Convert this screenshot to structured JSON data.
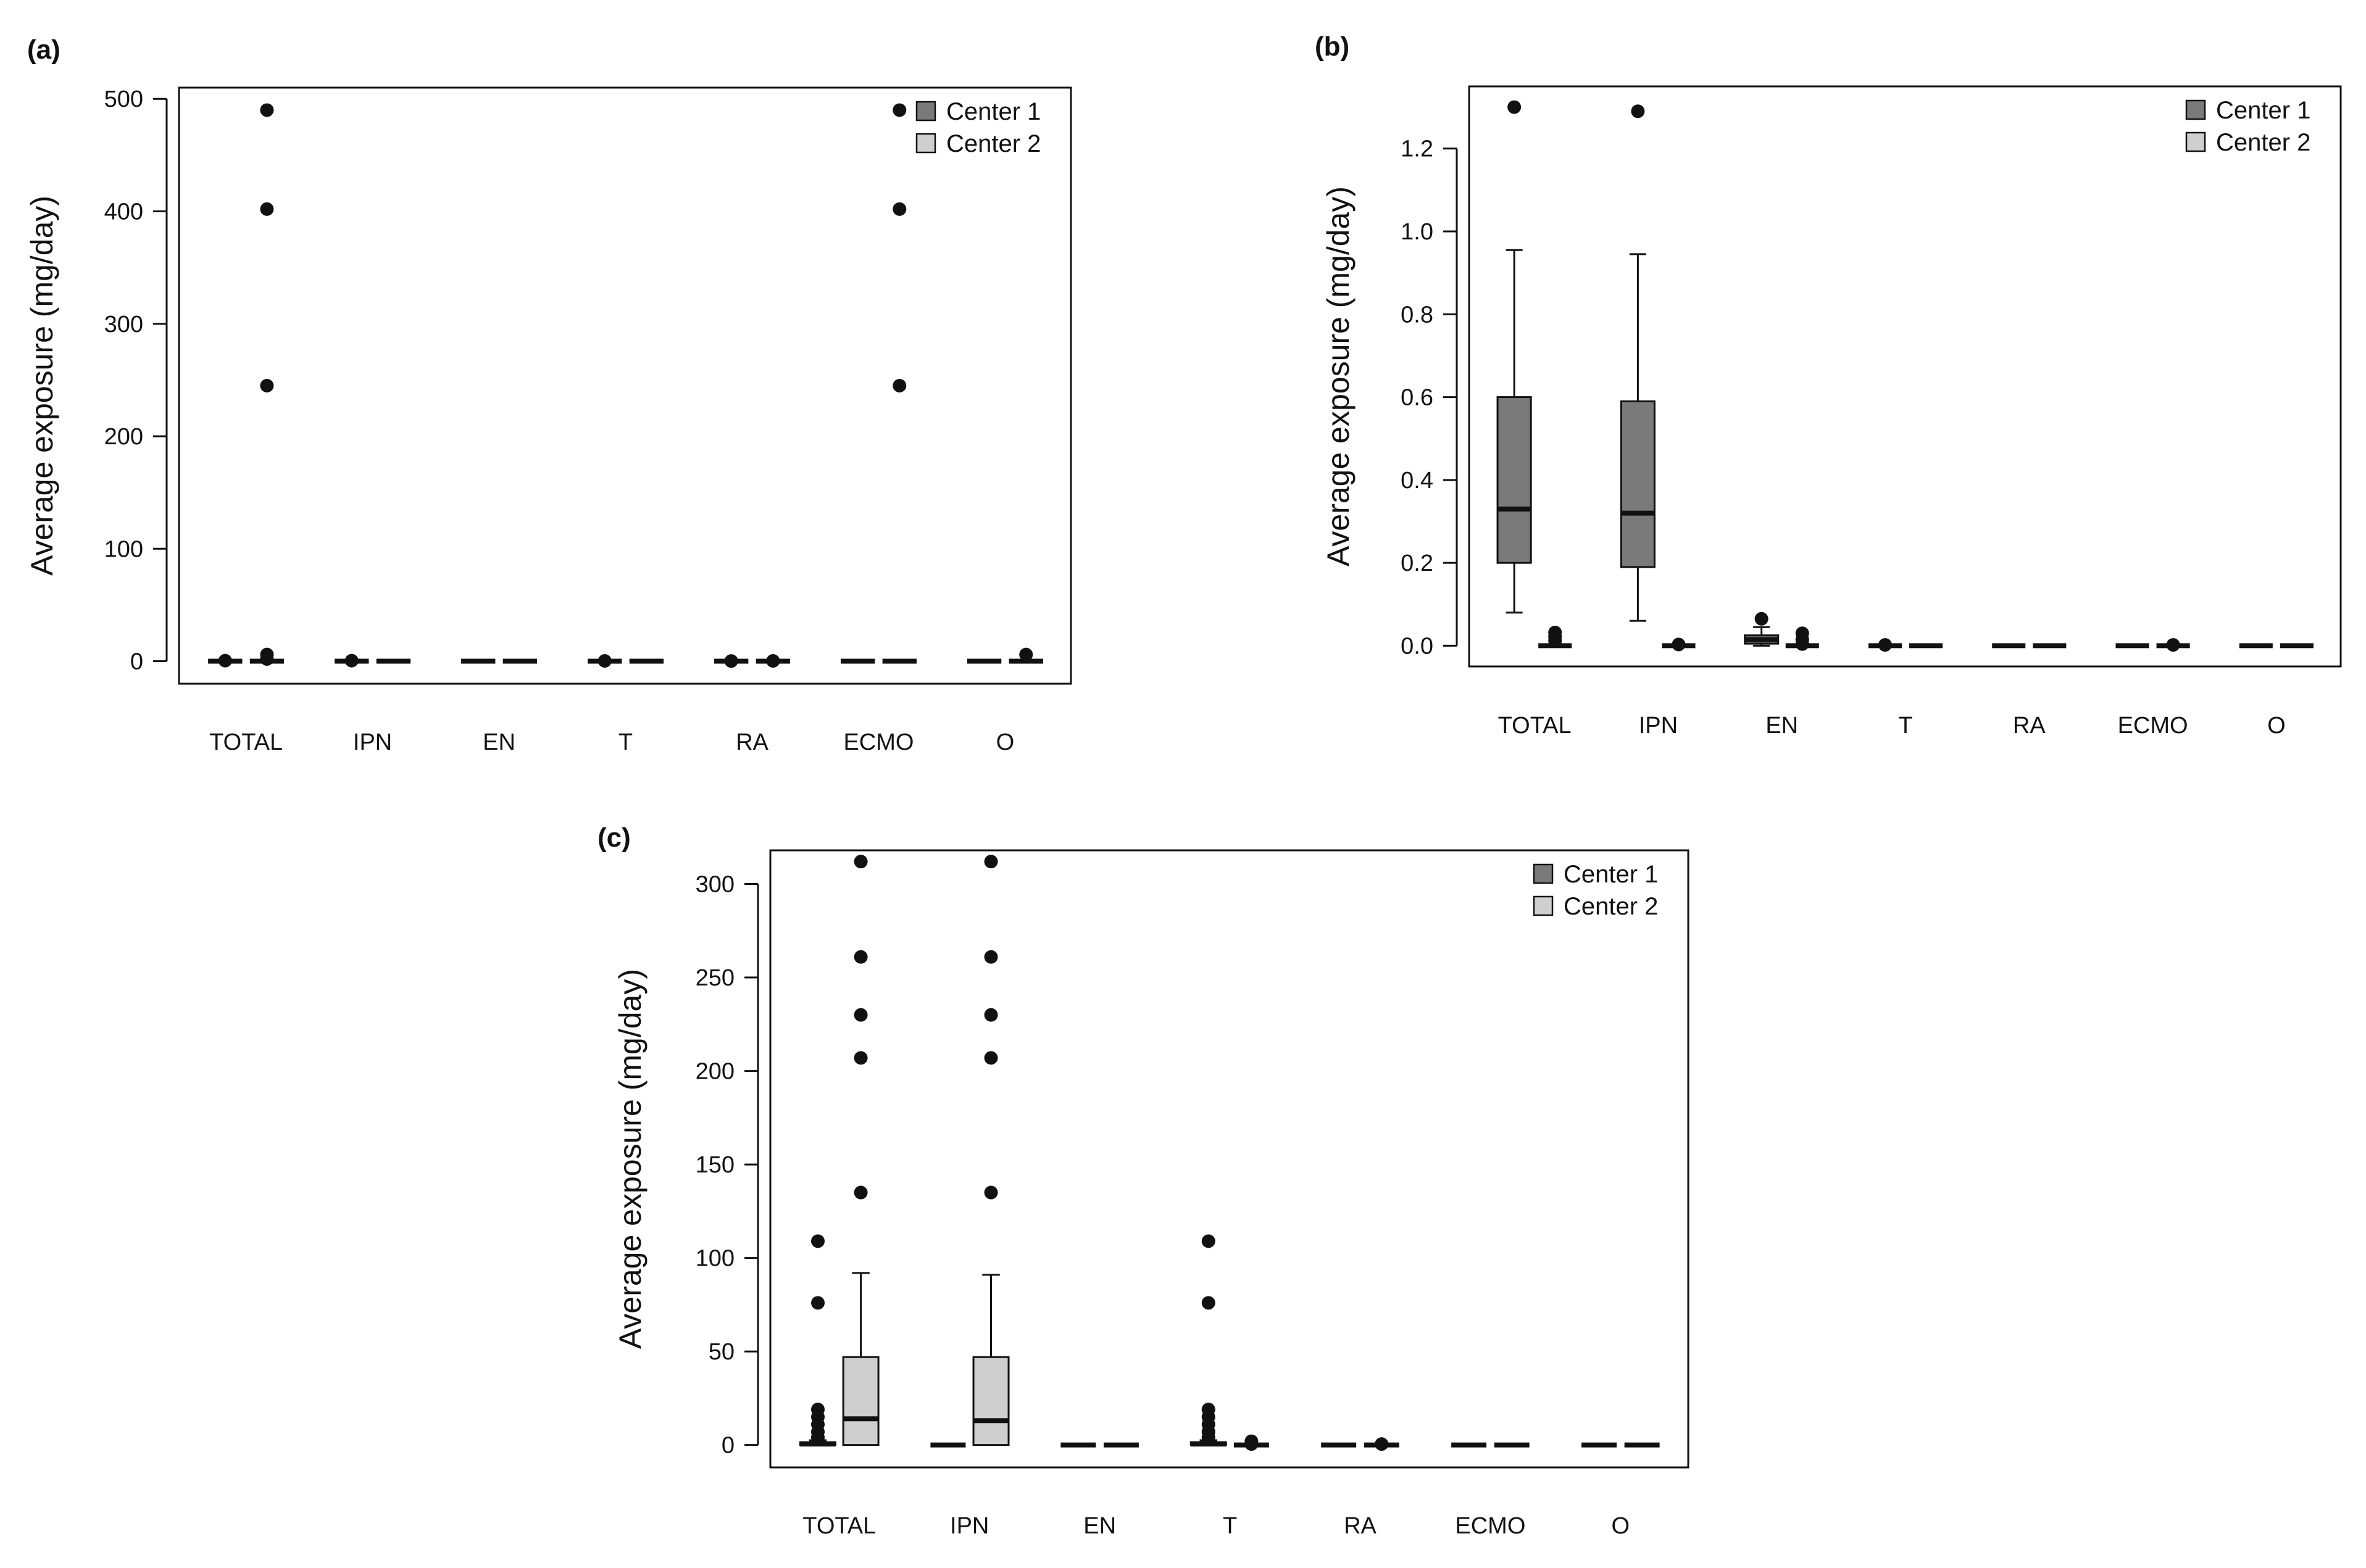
{
  "colors": {
    "center1": "#7a7a7a",
    "center2": "#cfcfcf",
    "ink": "#111111"
  },
  "chart_data": [
    {
      "panel": "(a)",
      "type": "box",
      "ylabel": "Average exposure (mg/day)",
      "ylim": [
        -20,
        510
      ],
      "yticks": [
        0,
        100,
        200,
        300,
        400,
        500
      ],
      "ytick_labels": [
        "0",
        "100",
        "200",
        "300",
        "400",
        "500"
      ],
      "categories": [
        "TOTAL",
        "IPN",
        "EN",
        "T",
        "RA",
        "ECMO",
        "O"
      ],
      "legend": {
        "position": "top-right",
        "entries": [
          "Center 1",
          "Center 2"
        ]
      },
      "series": [
        {
          "name": "Center 1",
          "boxes": [
            {
              "q1": 0,
              "median": 0,
              "q3": 0,
              "whisker_low": 0,
              "whisker_high": 0,
              "outliers": [
                0.5
              ]
            },
            {
              "q1": 0,
              "median": 0,
              "q3": 0,
              "whisker_low": 0,
              "whisker_high": 0,
              "outliers": [
                0.5
              ]
            },
            {
              "q1": 0,
              "median": 0,
              "q3": 0,
              "whisker_low": 0,
              "whisker_high": 0,
              "outliers": []
            },
            {
              "q1": 0,
              "median": 0,
              "q3": 0,
              "whisker_low": 0,
              "whisker_high": 0,
              "outliers": [
                0.3
              ]
            },
            {
              "q1": 0,
              "median": 0,
              "q3": 0,
              "whisker_low": 0,
              "whisker_high": 0,
              "outliers": [
                0.2
              ]
            },
            {
              "q1": 0,
              "median": 0,
              "q3": 0,
              "whisker_low": 0,
              "whisker_high": 0,
              "outliers": []
            },
            {
              "q1": 0,
              "median": 0,
              "q3": 0,
              "whisker_low": 0,
              "whisker_high": 0,
              "outliers": []
            }
          ]
        },
        {
          "name": "Center 2",
          "boxes": [
            {
              "q1": 0,
              "median": 0,
              "q3": 0,
              "whisker_low": 0,
              "whisker_high": 0,
              "outliers": [
                490,
                402,
                245,
                6,
                2
              ]
            },
            {
              "q1": 0,
              "median": 0,
              "q3": 0,
              "whisker_low": 0,
              "whisker_high": 0,
              "outliers": []
            },
            {
              "q1": 0,
              "median": 0,
              "q3": 0,
              "whisker_low": 0,
              "whisker_high": 0,
              "outliers": []
            },
            {
              "q1": 0,
              "median": 0,
              "q3": 0,
              "whisker_low": 0,
              "whisker_high": 0,
              "outliers": []
            },
            {
              "q1": 0,
              "median": 0,
              "q3": 0,
              "whisker_low": 0,
              "whisker_high": 0,
              "outliers": [
                0.3
              ]
            },
            {
              "q1": 0,
              "median": 0,
              "q3": 0,
              "whisker_low": 0,
              "whisker_high": 0,
              "outliers": [
                490,
                402,
                245
              ]
            },
            {
              "q1": 0,
              "median": 0,
              "q3": 0,
              "whisker_low": 0,
              "whisker_high": 0,
              "outliers": [
                6
              ]
            }
          ]
        }
      ]
    },
    {
      "panel": "(b)",
      "type": "box",
      "ylabel": "Average exposure (mg/day)",
      "ylim": [
        -0.05,
        1.35
      ],
      "yticks": [
        0,
        0.2,
        0.4,
        0.6,
        0.8,
        1.0,
        1.2
      ],
      "ytick_labels": [
        "0.0",
        "0.2",
        "0.4",
        "0.6",
        "0.8",
        "1.0",
        "1.2"
      ],
      "categories": [
        "TOTAL",
        "IPN",
        "EN",
        "T",
        "RA",
        "ECMO",
        "O"
      ],
      "legend": {
        "position": "top-right",
        "entries": [
          "Center 1",
          "Center 2"
        ]
      },
      "series": [
        {
          "name": "Center 1",
          "boxes": [
            {
              "q1": 0.2,
              "median": 0.33,
              "q3": 0.6,
              "whisker_low": 0.08,
              "whisker_high": 0.955,
              "outliers": [
                1.3
              ]
            },
            {
              "q1": 0.19,
              "median": 0.32,
              "q3": 0.59,
              "whisker_low": 0.06,
              "whisker_high": 0.945,
              "outliers": [
                1.29
              ]
            },
            {
              "q1": 0.005,
              "median": 0.015,
              "q3": 0.025,
              "whisker_low": 0,
              "whisker_high": 0.045,
              "outliers": [
                0.065
              ]
            },
            {
              "q1": 0,
              "median": 0,
              "q3": 0,
              "whisker_low": 0,
              "whisker_high": 0,
              "outliers": [
                0.002
              ]
            },
            {
              "q1": 0,
              "median": 0,
              "q3": 0,
              "whisker_low": 0,
              "whisker_high": 0,
              "outliers": []
            },
            {
              "q1": 0,
              "median": 0,
              "q3": 0,
              "whisker_low": 0,
              "whisker_high": 0,
              "outliers": []
            },
            {
              "q1": 0,
              "median": 0,
              "q3": 0,
              "whisker_low": 0,
              "whisker_high": 0,
              "outliers": []
            }
          ]
        },
        {
          "name": "Center 2",
          "boxes": [
            {
              "q1": 0,
              "median": 0,
              "q3": 0,
              "whisker_low": 0,
              "whisker_high": 0,
              "outliers": [
                0.032,
                0.022,
                0.012
              ]
            },
            {
              "q1": 0,
              "median": 0,
              "q3": 0,
              "whisker_low": 0,
              "whisker_high": 0,
              "outliers": [
                0.003
              ]
            },
            {
              "q1": 0,
              "median": 0,
              "q3": 0,
              "whisker_low": 0,
              "whisker_high": 0,
              "outliers": [
                0.03,
                0.015,
                0.004
              ]
            },
            {
              "q1": 0,
              "median": 0,
              "q3": 0,
              "whisker_low": 0,
              "whisker_high": 0,
              "outliers": []
            },
            {
              "q1": 0,
              "median": 0,
              "q3": 0,
              "whisker_low": 0,
              "whisker_high": 0,
              "outliers": []
            },
            {
              "q1": 0,
              "median": 0,
              "q3": 0,
              "whisker_low": 0,
              "whisker_high": 0,
              "outliers": [
                0.002
              ]
            },
            {
              "q1": 0,
              "median": 0,
              "q3": 0,
              "whisker_low": 0,
              "whisker_high": 0,
              "outliers": []
            }
          ]
        }
      ]
    },
    {
      "panel": "(c)",
      "type": "box",
      "ylabel": "Average exposure (mg/day)",
      "ylim": [
        -12,
        318
      ],
      "yticks": [
        0,
        50,
        100,
        150,
        200,
        250,
        300
      ],
      "ytick_labels": [
        "0",
        "50",
        "100",
        "150",
        "200",
        "250",
        "300"
      ],
      "categories": [
        "TOTAL",
        "IPN",
        "EN",
        "T",
        "RA",
        "ECMO",
        "O"
      ],
      "legend": {
        "position": "top-right",
        "entries": [
          "Center 1",
          "Center 2"
        ]
      },
      "series": [
        {
          "name": "Center 1",
          "boxes": [
            {
              "q1": 0,
              "median": 0.5,
              "q3": 1.5,
              "whisker_low": 0,
              "whisker_high": 2.5,
              "outliers": [
                109,
                76,
                19,
                15,
                11,
                7,
                4
              ]
            },
            {
              "q1": 0,
              "median": 0,
              "q3": 0,
              "whisker_low": 0,
              "whisker_high": 0,
              "outliers": []
            },
            {
              "q1": 0,
              "median": 0,
              "q3": 0,
              "whisker_low": 0,
              "whisker_high": 0,
              "outliers": []
            },
            {
              "q1": 0,
              "median": 0.5,
              "q3": 1.5,
              "whisker_low": 0,
              "whisker_high": 2.5,
              "outliers": [
                109,
                76,
                19,
                15,
                11,
                7,
                4
              ]
            },
            {
              "q1": 0,
              "median": 0,
              "q3": 0,
              "whisker_low": 0,
              "whisker_high": 0,
              "outliers": []
            },
            {
              "q1": 0,
              "median": 0,
              "q3": 0,
              "whisker_low": 0,
              "whisker_high": 0,
              "outliers": []
            },
            {
              "q1": 0,
              "median": 0,
              "q3": 0,
              "whisker_low": 0,
              "whisker_high": 0,
              "outliers": []
            }
          ]
        },
        {
          "name": "Center 2",
          "boxes": [
            {
              "q1": 0,
              "median": 14,
              "q3": 47,
              "whisker_low": 0,
              "whisker_high": 92,
              "outliers": [
                312,
                261,
                230,
                207,
                135
              ]
            },
            {
              "q1": 0,
              "median": 13,
              "q3": 47,
              "whisker_low": 0,
              "whisker_high": 91,
              "outliers": [
                312,
                261,
                230,
                207,
                135
              ]
            },
            {
              "q1": 0,
              "median": 0,
              "q3": 0,
              "whisker_low": 0,
              "whisker_high": 0,
              "outliers": []
            },
            {
              "q1": 0,
              "median": 0,
              "q3": 0,
              "whisker_low": 0,
              "whisker_high": 0,
              "outliers": [
                2,
                0.5
              ]
            },
            {
              "q1": 0,
              "median": 0,
              "q3": 0,
              "whisker_low": 0,
              "whisker_high": 0,
              "outliers": [
                0.5
              ]
            },
            {
              "q1": 0,
              "median": 0,
              "q3": 0,
              "whisker_low": 0,
              "whisker_high": 0,
              "outliers": []
            },
            {
              "q1": 0,
              "median": 0,
              "q3": 0,
              "whisker_low": 0,
              "whisker_high": 0,
              "outliers": []
            }
          ]
        }
      ]
    }
  ]
}
